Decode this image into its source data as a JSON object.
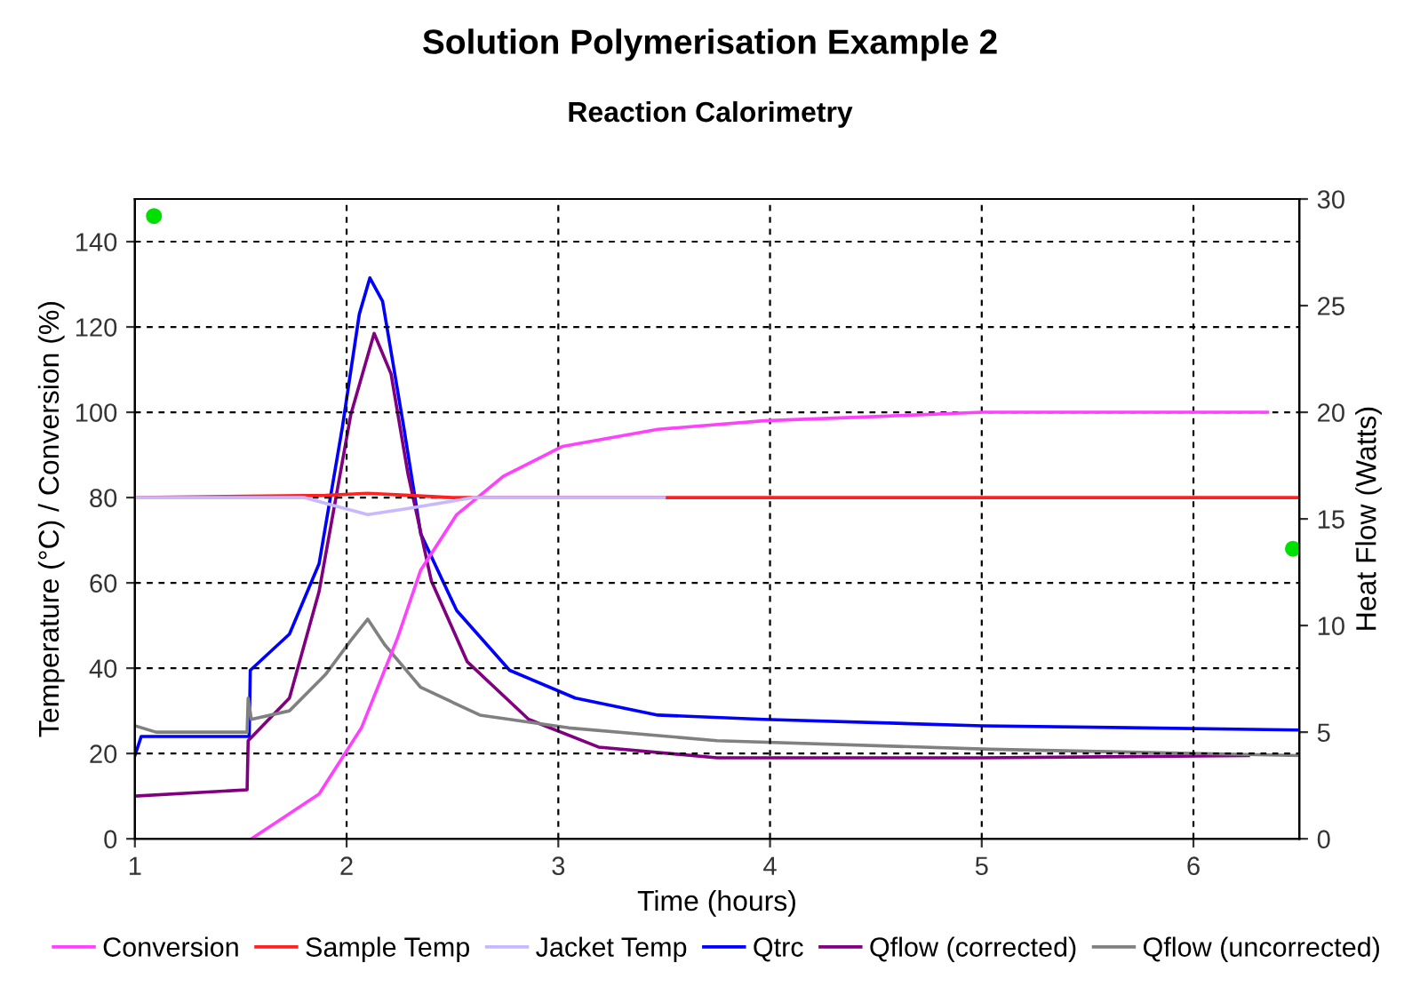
{
  "chart_data": {
    "type": "line",
    "title": "Solution Polymerisation Example 2",
    "subtitle": "Reaction Calorimetry",
    "xlabel": "Time (hours)",
    "ylabel": "Temperature (°C) / Conversion (%)",
    "y2label": "Heat Flow (Watts)",
    "xlim": [
      1,
      6.5
    ],
    "xticks": [
      1,
      2,
      3,
      4,
      5,
      6
    ],
    "ylim": [
      0,
      150
    ],
    "yticks": [
      0,
      20,
      40,
      60,
      80,
      100,
      120,
      140
    ],
    "y2lim": [
      0,
      30
    ],
    "y2ticks": [
      0,
      5,
      10,
      15,
      20,
      25,
      30
    ],
    "grid": true,
    "legend": "bottom",
    "line_style": "solid",
    "series": [
      {
        "name": "Conversion",
        "color": "#ff40ff",
        "x": [
          1.55,
          1.87,
          2.07,
          2.24,
          2.35,
          2.52,
          2.74,
          3.02,
          3.47,
          3.97,
          4.5,
          5.0,
          6.35
        ],
        "values": [
          0,
          10.5,
          26,
          47,
          63,
          76,
          85,
          92,
          96,
          98,
          99,
          100,
          100
        ]
      },
      {
        "name": "Sample Temp",
        "color": "#ff2020",
        "x": [
          1.0,
          1.9,
          2.1,
          2.3,
          2.5,
          6.5
        ],
        "values": [
          80,
          80.5,
          81,
          80.5,
          80,
          80
        ]
      },
      {
        "name": "Jacket Temp",
        "color": "#c8b8ff",
        "x": [
          1.0,
          1.8,
          1.95,
          2.1,
          2.3,
          2.6,
          3.5
        ],
        "values": [
          80,
          80,
          78,
          76,
          77.5,
          80,
          80
        ]
      },
      {
        "name": "Qtrc",
        "color": "#0000ff",
        "axis": "y2",
        "x": [
          1.0,
          1.03,
          1.54,
          1.545,
          1.73,
          1.87,
          1.98,
          2.06,
          2.11,
          2.17,
          2.27,
          2.35,
          2.52,
          2.77,
          3.08,
          3.47,
          3.97,
          5.0,
          6.5
        ],
        "values": [
          3.9,
          4.8,
          4.8,
          7.9,
          9.6,
          12.9,
          19.3,
          24.6,
          26.3,
          25.2,
          19.3,
          14.3,
          10.7,
          7.9,
          6.6,
          5.8,
          5.6,
          5.3,
          5.1
        ]
      },
      {
        "name": "Qflow (corrected)",
        "color": "#800080",
        "axis": "y2",
        "x": [
          1.0,
          1.53,
          1.535,
          1.73,
          1.87,
          2.02,
          2.13,
          2.21,
          2.29,
          2.4,
          2.57,
          2.86,
          3.19,
          3.75,
          5.0,
          6.26
        ],
        "values": [
          2.0,
          2.3,
          4.6,
          6.6,
          11.6,
          19.9,
          23.7,
          21.8,
          17.1,
          12.1,
          8.3,
          5.6,
          4.3,
          3.8,
          3.8,
          3.9
        ]
      },
      {
        "name": "Qflow (uncorrected)",
        "color": "#808080",
        "axis": "y2",
        "x": [
          1.0,
          1.1,
          1.53,
          1.535,
          1.55,
          1.73,
          1.9,
          2.02,
          2.1,
          2.18,
          2.35,
          2.63,
          3.05,
          3.75,
          5.04,
          6.5
        ],
        "values": [
          5.3,
          5.0,
          5.0,
          6.6,
          5.6,
          6.0,
          7.7,
          9.3,
          10.3,
          9.1,
          7.1,
          5.8,
          5.2,
          4.6,
          4.2,
          3.9
        ]
      },
      {
        "type": "scatter",
        "marker": "circle",
        "color": "#00e000",
        "x": [
          1.09
        ],
        "values": [
          146
        ]
      },
      {
        "type": "scatter",
        "marker": "circle",
        "color": "#00e000",
        "axis": "y2",
        "x": [
          6.47
        ],
        "values": [
          13.6
        ]
      }
    ]
  }
}
